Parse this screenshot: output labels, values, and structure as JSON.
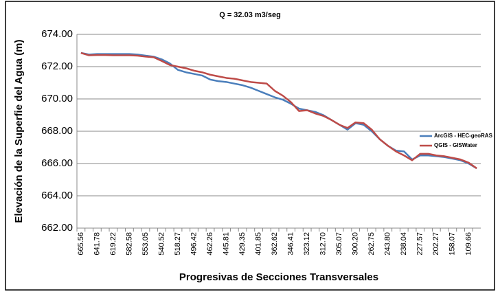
{
  "chart_data": {
    "type": "line",
    "title": "Q = 32.03 m3/seg",
    "x_label": "Progresivas de Secciones Transversales",
    "y_label": "Elevación de la Superfie del Agua (m)",
    "categories": [
      "665.56",
      null,
      "641.78",
      null,
      "619.22",
      null,
      "582.58",
      null,
      "553.05",
      null,
      "540.52",
      null,
      "518.27",
      null,
      "496.42",
      null,
      "462.26",
      null,
      "445.81",
      null,
      "429.35",
      null,
      "401.85",
      null,
      "362.62",
      null,
      "346.41",
      null,
      "323.12",
      null,
      "312.70",
      null,
      "305.07",
      null,
      "300.20",
      null,
      "262.75",
      null,
      "243.80",
      null,
      "238.04",
      null,
      "227.57",
      null,
      "202.27",
      null,
      "158.07",
      null,
      "109.66",
      null
    ],
    "series": [
      {
        "name": "ArcGIS - HEC-geoRAS",
        "color": "#4a7ebb",
        "values": [
          672.85,
          672.75,
          672.78,
          672.78,
          672.78,
          672.78,
          672.78,
          672.75,
          672.68,
          672.62,
          672.45,
          672.2,
          671.8,
          671.65,
          671.55,
          671.45,
          671.2,
          671.1,
          671.05,
          670.95,
          670.85,
          670.7,
          670.5,
          670.3,
          670.1,
          669.95,
          669.7,
          669.4,
          669.3,
          669.2,
          669.0,
          668.7,
          668.4,
          668.1,
          668.5,
          668.4,
          668.0,
          667.5,
          667.1,
          666.8,
          666.75,
          666.25,
          666.5,
          666.5,
          666.45,
          666.4,
          666.3,
          666.2,
          666.0,
          665.7
        ]
      },
      {
        "name": "QGIS - GISWater",
        "color": "#be4b48",
        "values": [
          672.85,
          672.7,
          672.72,
          672.72,
          672.7,
          672.7,
          672.7,
          672.68,
          672.62,
          672.58,
          672.35,
          672.1,
          672.0,
          671.9,
          671.75,
          671.65,
          671.5,
          671.4,
          671.3,
          671.25,
          671.15,
          671.05,
          671.0,
          670.95,
          670.5,
          670.2,
          669.8,
          669.25,
          669.3,
          669.1,
          668.95,
          668.7,
          668.4,
          668.2,
          668.55,
          668.5,
          668.1,
          667.5,
          667.1,
          666.75,
          666.5,
          666.2,
          666.6,
          666.6,
          666.5,
          666.45,
          666.35,
          666.25,
          666.05,
          665.7
        ]
      }
    ],
    "ylim": [
      662,
      674
    ],
    "yticks": [
      {
        "value": 662,
        "label": "662.00"
      },
      {
        "value": 664,
        "label": "664.00"
      },
      {
        "value": 666,
        "label": "666.00"
      },
      {
        "value": 668,
        "label": "668.00"
      },
      {
        "value": 670,
        "label": "670.00"
      },
      {
        "value": 672,
        "label": "672.00"
      },
      {
        "value": 674,
        "label": "674.00"
      }
    ],
    "grid": true,
    "legend": "right"
  }
}
